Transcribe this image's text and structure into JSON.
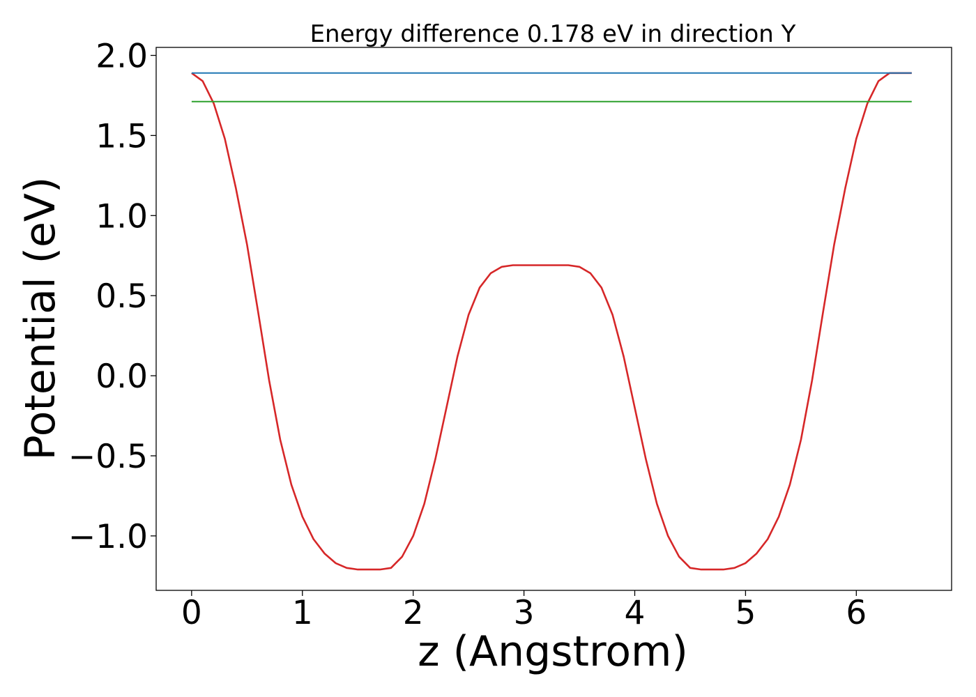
{
  "chart_data": {
    "type": "line",
    "title": "Energy difference 0.178 eV in direction Y",
    "xlabel": "z (Angstrom)",
    "ylabel": "Potential (eV)",
    "xlim": [
      -0.32,
      6.86
    ],
    "ylim": [
      -1.34,
      2.05
    ],
    "xticks": [
      {
        "value": 0,
        "label": "0"
      },
      {
        "value": 1,
        "label": "1"
      },
      {
        "value": 2,
        "label": "2"
      },
      {
        "value": 3,
        "label": "3"
      },
      {
        "value": 4,
        "label": "4"
      },
      {
        "value": 5,
        "label": "5"
      },
      {
        "value": 6,
        "label": "6"
      }
    ],
    "yticks": [
      {
        "value": -1.0,
        "label": "−1.0"
      },
      {
        "value": -0.5,
        "label": "−0.5"
      },
      {
        "value": 0.0,
        "label": "0.0"
      },
      {
        "value": 0.5,
        "label": "0.5"
      },
      {
        "value": 1.0,
        "label": "1.0"
      },
      {
        "value": 1.5,
        "label": "1.5"
      },
      {
        "value": 2.0,
        "label": "2.0"
      }
    ],
    "grid": false,
    "legend": "none",
    "series": [
      {
        "color": "#d62728",
        "x": [
          0.0,
          0.1,
          0.2,
          0.3,
          0.4,
          0.5,
          0.6,
          0.7,
          0.8,
          0.9,
          1.0,
          1.1,
          1.2,
          1.3,
          1.4,
          1.5,
          1.6,
          1.7,
          1.8,
          1.9,
          2.0,
          2.1,
          2.2,
          2.3,
          2.4,
          2.5,
          2.6,
          2.7,
          2.8,
          2.9,
          3.0,
          3.1,
          3.2,
          3.3,
          3.4,
          3.5,
          3.6,
          3.7,
          3.8,
          3.9,
          4.0,
          4.1,
          4.2,
          4.3,
          4.4,
          4.5,
          4.6,
          4.7,
          4.8,
          4.9,
          5.0,
          5.1,
          5.2,
          5.3,
          5.4,
          5.5,
          5.6,
          5.7,
          5.8,
          5.9,
          6.0,
          6.1,
          6.2,
          6.3,
          6.4,
          6.5
        ],
        "y": [
          1.89,
          1.84,
          1.7,
          1.48,
          1.17,
          0.82,
          0.4,
          -0.03,
          -0.4,
          -0.68,
          -0.88,
          -1.02,
          -1.11,
          -1.17,
          -1.2,
          -1.21,
          -1.21,
          -1.21,
          -1.2,
          -1.13,
          -1.0,
          -0.8,
          -0.52,
          -0.2,
          0.12,
          0.38,
          0.55,
          0.64,
          0.68,
          0.69,
          0.69,
          0.69,
          0.69,
          0.69,
          0.69,
          0.68,
          0.64,
          0.55,
          0.38,
          0.12,
          -0.2,
          -0.52,
          -0.8,
          -1.0,
          -1.13,
          -1.2,
          -1.21,
          -1.21,
          -1.21,
          -1.2,
          -1.17,
          -1.11,
          -1.02,
          -0.88,
          -0.68,
          -0.4,
          -0.03,
          0.4,
          0.82,
          1.17,
          1.48,
          1.7,
          1.84,
          1.89,
          1.89,
          1.89
        ]
      },
      {
        "color": "#1f77b4",
        "x": [
          0.0,
          6.5
        ],
        "y": [
          1.89,
          1.89
        ]
      },
      {
        "color": "#2ca02c",
        "x": [
          0.0,
          6.5
        ],
        "y": [
          1.712,
          1.712
        ]
      }
    ]
  }
}
